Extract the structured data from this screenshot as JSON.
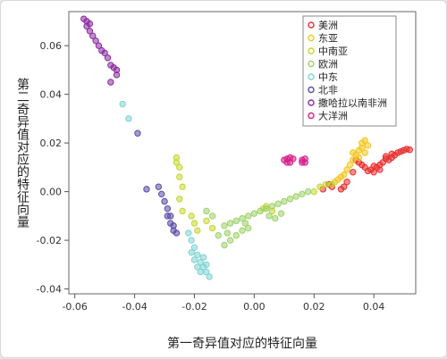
{
  "chart_data": {
    "type": "scatter",
    "title": "",
    "xlabel": "第一奇异值对应的特征向量",
    "ylabel": "第二奇异值对应的特征向量",
    "xlim": [
      -0.062,
      0.054
    ],
    "ylim": [
      -0.042,
      0.074
    ],
    "x_ticks": [
      -0.06,
      -0.04,
      -0.02,
      0.0,
      0.02,
      0.04
    ],
    "x_tick_labels": [
      "-0.06",
      "-0.04",
      "-0.02",
      "0.00",
      "0.02",
      "0.04"
    ],
    "y_ticks": [
      -0.04,
      -0.02,
      0.0,
      0.02,
      0.04,
      0.06
    ],
    "y_tick_labels": [
      "-0.04",
      "-0.02",
      "0.00",
      "0.02",
      "0.04",
      "0.06"
    ],
    "grid": false,
    "legend_position": "top-right",
    "series": [
      {
        "name": "美洲",
        "color": "#e8302f",
        "points": [
          [
            0.05,
            0.017
          ],
          [
            0.051,
            0.0175
          ],
          [
            0.052,
            0.0172
          ],
          [
            0.049,
            0.0165
          ],
          [
            0.048,
            0.016
          ],
          [
            0.047,
            0.015
          ],
          [
            0.046,
            0.014
          ],
          [
            0.045,
            0.013
          ],
          [
            0.044,
            0.0135
          ],
          [
            0.043,
            0.012
          ],
          [
            0.042,
            0.011
          ],
          [
            0.041,
            0.01
          ],
          [
            0.04,
            0.0105
          ],
          [
            0.039,
            0.009
          ],
          [
            0.038,
            0.0085
          ],
          [
            0.037,
            0.01
          ],
          [
            0.036,
            0.011
          ],
          [
            0.035,
            0.012
          ],
          [
            0.034,
            0.013
          ],
          [
            0.033,
            0.008
          ],
          [
            0.031,
            0.004
          ],
          [
            0.03,
            0.002
          ],
          [
            0.029,
            0.001
          ],
          [
            0.026,
            0.002
          ],
          [
            0.025,
            0.003
          ],
          [
            0.023,
            0.001
          ],
          [
            0.04,
            0.008
          ],
          [
            0.042,
            0.009
          ],
          [
            0.046,
            0.0155
          ],
          [
            0.044,
            0.0145
          ]
        ]
      },
      {
        "name": "东亚",
        "color": "#f3c61f",
        "points": [
          [
            0.036,
            0.02
          ],
          [
            0.037,
            0.021
          ],
          [
            0.038,
            0.019
          ],
          [
            0.035,
            0.017
          ],
          [
            0.034,
            0.015
          ],
          [
            0.033,
            0.013
          ],
          [
            0.032,
            0.011
          ],
          [
            0.031,
            0.009
          ],
          [
            0.03,
            0.007
          ],
          [
            0.029,
            0.006
          ],
          [
            0.028,
            0.005
          ],
          [
            0.027,
            0.004
          ],
          [
            0.036,
            0.018
          ],
          [
            0.037,
            0.016
          ],
          [
            0.033,
            0.016
          ],
          [
            0.035,
            0.014
          ]
        ]
      },
      {
        "name": "中南亚",
        "color": "#c5d730",
        "points": [
          [
            -0.026,
            0.014
          ],
          [
            -0.026,
            0.012
          ],
          [
            -0.025,
            0.01
          ],
          [
            -0.025,
            0.006
          ],
          [
            -0.024,
            0.002
          ],
          [
            -0.025,
            -0.003
          ],
          [
            -0.024,
            -0.008
          ],
          [
            -0.021,
            -0.01
          ],
          [
            -0.02,
            -0.013
          ],
          [
            -0.019,
            -0.016
          ],
          [
            0.003,
            -0.007
          ],
          [
            0.004,
            -0.006
          ],
          [
            0.02,
            0.0
          ],
          [
            0.022,
            0.002
          ],
          [
            0.024,
            0.003
          ],
          [
            0.026,
            0.003
          ],
          [
            -0.016,
            -0.012
          ],
          [
            -0.014,
            -0.015
          ],
          [
            0.006,
            -0.008
          ]
        ]
      },
      {
        "name": "欧洲",
        "color": "#9ed26b",
        "points": [
          [
            -0.01,
            -0.014
          ],
          [
            -0.008,
            -0.013
          ],
          [
            -0.006,
            -0.012
          ],
          [
            -0.004,
            -0.011
          ],
          [
            -0.002,
            -0.01
          ],
          [
            0.0,
            -0.009
          ],
          [
            0.002,
            -0.008
          ],
          [
            0.004,
            -0.007
          ],
          [
            0.006,
            -0.006
          ],
          [
            0.008,
            -0.005
          ],
          [
            0.01,
            -0.004
          ],
          [
            0.012,
            -0.003
          ],
          [
            0.014,
            -0.002
          ],
          [
            0.016,
            -0.001
          ],
          [
            0.018,
            0.0
          ],
          [
            -0.012,
            -0.018
          ],
          [
            -0.01,
            -0.022
          ],
          [
            -0.008,
            -0.02
          ],
          [
            -0.006,
            -0.018
          ],
          [
            -0.004,
            -0.016
          ],
          [
            -0.002,
            -0.015
          ],
          [
            -0.014,
            -0.01
          ],
          [
            -0.016,
            -0.008
          ],
          [
            0.005,
            -0.01
          ],
          [
            0.007,
            -0.011
          ],
          [
            0.009,
            -0.009
          ],
          [
            -0.003,
            -0.013
          ],
          [
            -0.009,
            -0.017
          ]
        ]
      },
      {
        "name": "中东",
        "color": "#7fd3d1",
        "points": [
          [
            -0.044,
            0.036
          ],
          [
            -0.042,
            0.03
          ],
          [
            -0.022,
            -0.017
          ],
          [
            -0.021,
            -0.02
          ],
          [
            -0.02,
            -0.023
          ],
          [
            -0.019,
            -0.026
          ],
          [
            -0.018,
            -0.029
          ],
          [
            -0.017,
            -0.031
          ],
          [
            -0.016,
            -0.033
          ],
          [
            -0.015,
            -0.035
          ],
          [
            -0.02,
            -0.028
          ],
          [
            -0.019,
            -0.031
          ],
          [
            -0.018,
            -0.033
          ],
          [
            -0.021,
            -0.025
          ],
          [
            -0.017,
            -0.027
          ],
          [
            -0.016,
            -0.03
          ]
        ]
      },
      {
        "name": "北非",
        "color": "#5b4aa8",
        "points": [
          [
            -0.039,
            0.024
          ],
          [
            -0.032,
            0.002
          ],
          [
            -0.031,
            -0.001
          ],
          [
            -0.03,
            -0.004
          ],
          [
            -0.029,
            -0.007
          ],
          [
            -0.028,
            -0.01
          ],
          [
            -0.028,
            -0.013
          ],
          [
            -0.027,
            -0.016
          ],
          [
            -0.026,
            -0.017
          ],
          [
            -0.027,
            -0.014
          ],
          [
            -0.029,
            -0.01
          ],
          [
            -0.036,
            0.001
          ]
        ]
      },
      {
        "name": "撒哈拉以南非洲",
        "color": "#8b2ba0",
        "points": [
          [
            -0.057,
            0.071
          ],
          [
            -0.056,
            0.07
          ],
          [
            -0.056,
            0.068
          ],
          [
            -0.055,
            0.069
          ],
          [
            -0.055,
            0.066
          ],
          [
            -0.054,
            0.064
          ],
          [
            -0.053,
            0.062
          ],
          [
            -0.052,
            0.06
          ],
          [
            -0.051,
            0.058
          ],
          [
            -0.05,
            0.057
          ],
          [
            -0.049,
            0.055
          ],
          [
            -0.048,
            0.052
          ],
          [
            -0.047,
            0.051
          ],
          [
            -0.046,
            0.05
          ],
          [
            -0.048,
            0.045
          ],
          [
            -0.046,
            0.048
          ]
        ]
      },
      {
        "name": "大洋洲",
        "color": "#d6208b",
        "points": [
          [
            0.01,
            0.013
          ],
          [
            0.011,
            0.0135
          ],
          [
            0.012,
            0.014
          ],
          [
            0.013,
            0.0135
          ],
          [
            0.011,
            0.012
          ],
          [
            0.012,
            0.012
          ],
          [
            0.016,
            0.013
          ],
          [
            0.017,
            0.0135
          ],
          [
            0.016,
            0.012
          ],
          [
            0.017,
            0.012
          ]
        ]
      }
    ]
  }
}
